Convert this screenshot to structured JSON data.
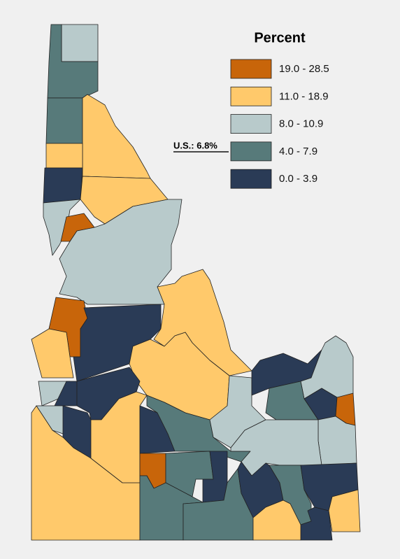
{
  "legend": {
    "title": "Percent",
    "classes": [
      {
        "label": "19.0 - 28.5",
        "color": "#c8650a"
      },
      {
        "label": "11.0 - 18.9",
        "color": "#ffc96b"
      },
      {
        "label": "8.0 - 10.9",
        "color": "#b8cacb"
      },
      {
        "label": "4.0 - 7.9",
        "color": "#577a7a"
      },
      {
        "label": "0.0 - 3.9",
        "color": "#2a3b56"
      }
    ]
  },
  "annotation": "U.S.: 6.8%"
}
